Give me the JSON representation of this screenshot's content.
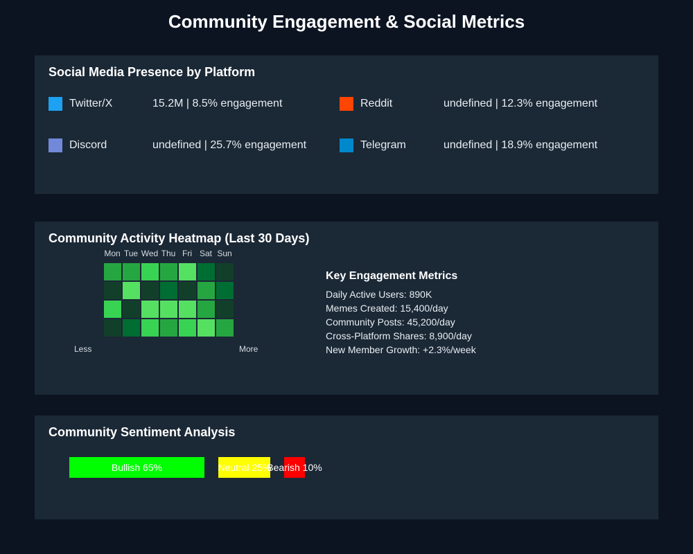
{
  "page": {
    "title": "Community Engagement & Social Metrics"
  },
  "social": {
    "title": "Social Media Presence by Platform",
    "platforms": [
      {
        "name": "Twitter/X",
        "stats": "15.2M | 8.5% engagement",
        "color": "#1da1f2"
      },
      {
        "name": "Reddit",
        "stats": "undefined | 12.3% engagement",
        "color": "#ff4500"
      },
      {
        "name": "Discord",
        "stats": "undefined | 25.7% engagement",
        "color": "#7289da"
      },
      {
        "name": "Telegram",
        "stats": "undefined | 18.9% engagement",
        "color": "#0088cc"
      }
    ]
  },
  "heatmap": {
    "title": "Community Activity Heatmap (Last 30 Days)",
    "days": [
      "Mon",
      "Tue",
      "Wed",
      "Thu",
      "Fri",
      "Sat",
      "Sun"
    ],
    "levels": [
      [
        3,
        3,
        4,
        3,
        5,
        2,
        1
      ],
      [
        1,
        5,
        1,
        2,
        1,
        3,
        2
      ],
      [
        4,
        1,
        5,
        5,
        5,
        3,
        1
      ],
      [
        1,
        2,
        4,
        3,
        4,
        5,
        3
      ]
    ],
    "level_colors": [
      "#0e4429",
      "#123f2a",
      "#006d32",
      "#26a641",
      "#39d353",
      "#56e062"
    ],
    "legend_less": "Less",
    "legend_more": "More"
  },
  "metrics": {
    "heading": "Key Engagement Metrics",
    "items": [
      "Daily Active Users: 890K",
      "Memes Created: 15,400/day",
      "Community Posts: 45,200/day",
      "Cross-Platform Shares: 8,900/day",
      "New Member Growth: +2.3%/week"
    ]
  },
  "sentiment": {
    "title": "Community Sentiment Analysis",
    "segments": [
      {
        "label": "Bullish 65%",
        "percent": 65,
        "color": "#00ff00"
      },
      {
        "label": "Neutral 25%",
        "percent": 25,
        "color": "#ffff00"
      },
      {
        "label": "Bearish 10%",
        "percent": 10,
        "color": "#ff0000"
      }
    ]
  }
}
